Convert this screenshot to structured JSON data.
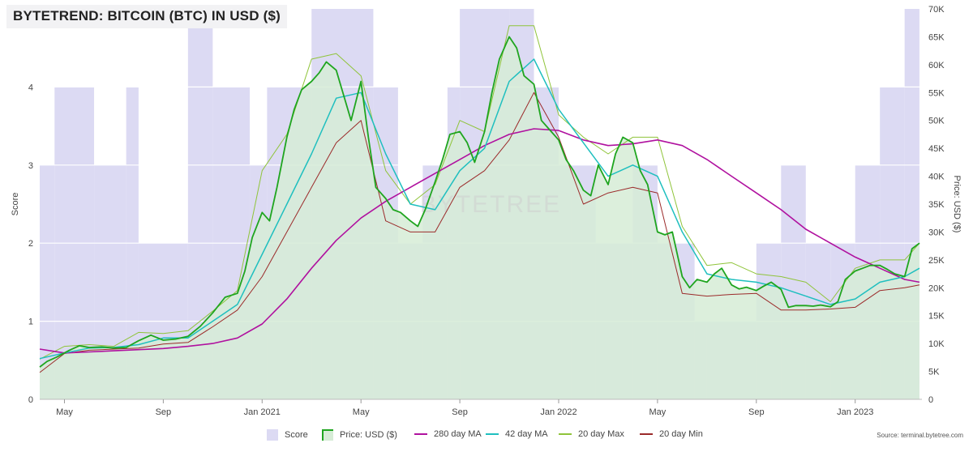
{
  "header": {
    "title": "BYTETREND: BITCOIN (BTC) IN USD ($)"
  },
  "watermark": "BYTETREE",
  "source": "Source: terminal.bytetree.com",
  "colors": {
    "score": "#dcdaf3",
    "price_area": "#d6ecd6",
    "price_line": "#1fa51f",
    "ma280": "#b0119f",
    "ma42": "#1fbfbf",
    "max20": "#8fc43a",
    "min20": "#9b2a2a"
  },
  "chart_data": {
    "type": "line",
    "title": "BYTETREND: BITCOIN (BTC) IN USD ($)",
    "ylabel_left": "Score",
    "ylabel_right": "Price: USD ($)",
    "ylim_left": [
      0,
      5
    ],
    "ylim_right": [
      0,
      70000
    ],
    "left_ticks": [
      "0",
      "1",
      "2",
      "3",
      "4"
    ],
    "right_ticks": [
      "0",
      "5K",
      "10K",
      "15K",
      "20K",
      "25K",
      "30K",
      "35K",
      "40K",
      "45K",
      "50K",
      "55K",
      "60K",
      "65K",
      "70K"
    ],
    "x_ticks": [
      "May",
      "Sep",
      "Jan 2021",
      "May",
      "Sep",
      "Jan 2022",
      "May",
      "Sep",
      "Jan 2023"
    ],
    "x_tick_months": [
      1,
      5,
      9,
      13,
      17,
      21,
      25,
      29,
      33
    ],
    "x_range_months": [
      0,
      35.7
    ],
    "legend_position": "bottom",
    "grid": true,
    "series": [
      {
        "name": "Price: USD ($)",
        "key": "price",
        "points": [
          [
            0,
            5800
          ],
          [
            0.3,
            6800
          ],
          [
            0.7,
            7600
          ],
          [
            1.2,
            8800
          ],
          [
            1.6,
            9600
          ],
          [
            2,
            9300
          ],
          [
            2.5,
            9400
          ],
          [
            3,
            9200
          ],
          [
            3.5,
            9300
          ],
          [
            4,
            10500
          ],
          [
            4.5,
            11500
          ],
          [
            5,
            10600
          ],
          [
            5.5,
            10800
          ],
          [
            6,
            11300
          ],
          [
            6.5,
            13100
          ],
          [
            7,
            15500
          ],
          [
            7.5,
            18300
          ],
          [
            8,
            19000
          ],
          [
            8.3,
            23000
          ],
          [
            8.6,
            29000
          ],
          [
            9,
            33500
          ],
          [
            9.3,
            32000
          ],
          [
            9.6,
            38000
          ],
          [
            10,
            47000
          ],
          [
            10.3,
            52000
          ],
          [
            10.6,
            55500
          ],
          [
            11,
            57000
          ],
          [
            11.3,
            58500
          ],
          [
            11.6,
            60500
          ],
          [
            12,
            59000
          ],
          [
            12.2,
            56000
          ],
          [
            12.6,
            50000
          ],
          [
            13,
            57000
          ],
          [
            13.3,
            47000
          ],
          [
            13.6,
            38000
          ],
          [
            14,
            36000
          ],
          [
            14.3,
            34000
          ],
          [
            14.6,
            33500
          ],
          [
            15,
            32000
          ],
          [
            15.3,
            31000
          ],
          [
            15.6,
            34000
          ],
          [
            16,
            39000
          ],
          [
            16.3,
            43000
          ],
          [
            16.6,
            47500
          ],
          [
            17,
            48000
          ],
          [
            17.3,
            46000
          ],
          [
            17.6,
            42500
          ],
          [
            18,
            48000
          ],
          [
            18.3,
            55000
          ],
          [
            18.6,
            61000
          ],
          [
            19,
            65000
          ],
          [
            19.3,
            63000
          ],
          [
            19.6,
            58000
          ],
          [
            20,
            56500
          ],
          [
            20.3,
            50000
          ],
          [
            20.6,
            48500
          ],
          [
            21,
            46500
          ],
          [
            21.3,
            43000
          ],
          [
            21.6,
            41000
          ],
          [
            22,
            37500
          ],
          [
            22.3,
            36500
          ],
          [
            22.6,
            42000
          ],
          [
            23,
            38500
          ],
          [
            23.3,
            44000
          ],
          [
            23.6,
            47000
          ],
          [
            24,
            46000
          ],
          [
            24.3,
            41000
          ],
          [
            24.6,
            38500
          ],
          [
            25,
            30000
          ],
          [
            25.3,
            29500
          ],
          [
            25.6,
            30000
          ],
          [
            26,
            22000
          ],
          [
            26.3,
            20000
          ],
          [
            26.6,
            21500
          ],
          [
            27,
            21000
          ],
          [
            27.3,
            22500
          ],
          [
            27.6,
            23500
          ],
          [
            28,
            20500
          ],
          [
            28.3,
            19800
          ],
          [
            28.6,
            20100
          ],
          [
            29,
            19500
          ],
          [
            29.3,
            20300
          ],
          [
            29.6,
            21000
          ],
          [
            30,
            19700
          ],
          [
            30.3,
            16500
          ],
          [
            30.6,
            16800
          ],
          [
            31,
            16800
          ],
          [
            31.3,
            16700
          ],
          [
            31.6,
            16900
          ],
          [
            32,
            16600
          ],
          [
            32.3,
            17500
          ],
          [
            32.6,
            21500
          ],
          [
            33,
            23000
          ],
          [
            33.3,
            23500
          ],
          [
            33.6,
            24000
          ],
          [
            34,
            24000
          ],
          [
            34.3,
            23300
          ],
          [
            34.6,
            22500
          ],
          [
            35,
            22000
          ],
          [
            35.3,
            27000
          ],
          [
            35.6,
            28000
          ]
        ]
      },
      {
        "name": "280 day MA",
        "key": "ma280",
        "points": [
          [
            0,
            9000
          ],
          [
            1,
            8300
          ],
          [
            2,
            8500
          ],
          [
            3,
            8700
          ],
          [
            4,
            8900
          ],
          [
            5,
            9100
          ],
          [
            6,
            9500
          ],
          [
            7,
            10000
          ],
          [
            8,
            11000
          ],
          [
            9,
            13500
          ],
          [
            10,
            18000
          ],
          [
            11,
            23500
          ],
          [
            12,
            28500
          ],
          [
            13,
            32500
          ],
          [
            14,
            35500
          ],
          [
            15,
            38000
          ],
          [
            16,
            40500
          ],
          [
            17,
            43000
          ],
          [
            18,
            45500
          ],
          [
            19,
            47500
          ],
          [
            20,
            48500
          ],
          [
            21,
            48200
          ],
          [
            22,
            46500
          ],
          [
            23,
            45500
          ],
          [
            24,
            45800
          ],
          [
            25,
            46500
          ],
          [
            26,
            45500
          ],
          [
            27,
            43000
          ],
          [
            28,
            40000
          ],
          [
            29,
            37000
          ],
          [
            30,
            34000
          ],
          [
            31,
            30500
          ],
          [
            32,
            28000
          ],
          [
            33,
            25500
          ],
          [
            34,
            23500
          ],
          [
            35,
            21500
          ],
          [
            35.6,
            21000
          ]
        ]
      },
      {
        "name": "42 day MA",
        "key": "ma42",
        "points": [
          [
            0,
            7300
          ],
          [
            1,
            8300
          ],
          [
            2,
            9200
          ],
          [
            3,
            9300
          ],
          [
            4,
            9800
          ],
          [
            5,
            11000
          ],
          [
            6,
            11000
          ],
          [
            7,
            14000
          ],
          [
            8,
            17000
          ],
          [
            9,
            26000
          ],
          [
            10,
            35000
          ],
          [
            11,
            44000
          ],
          [
            12,
            54000
          ],
          [
            13,
            55000
          ],
          [
            14,
            44000
          ],
          [
            15,
            35000
          ],
          [
            16,
            34000
          ],
          [
            17,
            41000
          ],
          [
            18,
            45000
          ],
          [
            19,
            57000
          ],
          [
            20,
            61000
          ],
          [
            21,
            52000
          ],
          [
            22,
            46000
          ],
          [
            23,
            40000
          ],
          [
            24,
            42000
          ],
          [
            25,
            40000
          ],
          [
            26,
            30000
          ],
          [
            27,
            22500
          ],
          [
            28,
            21500
          ],
          [
            29,
            21000
          ],
          [
            30,
            20000
          ],
          [
            31,
            18500
          ],
          [
            32,
            17000
          ],
          [
            33,
            18000
          ],
          [
            34,
            21000
          ],
          [
            35,
            22000
          ],
          [
            35.6,
            23500
          ]
        ]
      },
      {
        "name": "20 day Max",
        "key": "max20",
        "points": [
          [
            0,
            7200
          ],
          [
            1,
            9500
          ],
          [
            2,
            9800
          ],
          [
            3,
            9500
          ],
          [
            4,
            12000
          ],
          [
            5,
            11800
          ],
          [
            6,
            12300
          ],
          [
            7,
            15800
          ],
          [
            8,
            19500
          ],
          [
            9,
            41000
          ],
          [
            10,
            47500
          ],
          [
            11,
            61000
          ],
          [
            12,
            62000
          ],
          [
            13,
            58000
          ],
          [
            14,
            41000
          ],
          [
            15,
            35000
          ],
          [
            16,
            38500
          ],
          [
            17,
            50000
          ],
          [
            18,
            48000
          ],
          [
            19,
            67000
          ],
          [
            20,
            67000
          ],
          [
            21,
            51000
          ],
          [
            22,
            47000
          ],
          [
            23,
            44000
          ],
          [
            24,
            47000
          ],
          [
            25,
            47000
          ],
          [
            26,
            31000
          ],
          [
            27,
            24000
          ],
          [
            28,
            24500
          ],
          [
            29,
            22500
          ],
          [
            30,
            22000
          ],
          [
            31,
            21000
          ],
          [
            32,
            17500
          ],
          [
            33,
            23500
          ],
          [
            34,
            25000
          ],
          [
            35,
            25000
          ],
          [
            35.6,
            28000
          ]
        ]
      },
      {
        "name": "20 day Min",
        "key": "min20",
        "points": [
          [
            0,
            4800
          ],
          [
            1,
            8200
          ],
          [
            2,
            8800
          ],
          [
            3,
            9000
          ],
          [
            4,
            9200
          ],
          [
            5,
            9900
          ],
          [
            6,
            10200
          ],
          [
            7,
            13000
          ],
          [
            8,
            16000
          ],
          [
            9,
            22000
          ],
          [
            10,
            30000
          ],
          [
            11,
            38000
          ],
          [
            12,
            46000
          ],
          [
            13,
            50000
          ],
          [
            14,
            32000
          ],
          [
            15,
            30000
          ],
          [
            16,
            30000
          ],
          [
            17,
            38000
          ],
          [
            18,
            41000
          ],
          [
            19,
            46500
          ],
          [
            20,
            55000
          ],
          [
            21,
            47000
          ],
          [
            22,
            35000
          ],
          [
            23,
            37000
          ],
          [
            24,
            38000
          ],
          [
            25,
            37000
          ],
          [
            26,
            19000
          ],
          [
            27,
            18500
          ],
          [
            28,
            18800
          ],
          [
            29,
            19000
          ],
          [
            30,
            16000
          ],
          [
            31,
            16000
          ],
          [
            32,
            16200
          ],
          [
            33,
            16500
          ],
          [
            34,
            19500
          ],
          [
            35,
            20000
          ],
          [
            35.6,
            20500
          ]
        ]
      },
      {
        "name": "Score",
        "key": "score",
        "steps": [
          [
            0,
            3
          ],
          [
            0.6,
            4
          ],
          [
            2.2,
            3
          ],
          [
            3.5,
            4
          ],
          [
            4,
            2
          ],
          [
            6,
            5
          ],
          [
            7,
            4
          ],
          [
            8.5,
            3
          ],
          [
            9.2,
            4
          ],
          [
            11,
            5
          ],
          [
            13.5,
            4
          ],
          [
            14.5,
            2
          ],
          [
            15.5,
            3
          ],
          [
            16.5,
            4
          ],
          [
            17,
            5
          ],
          [
            19,
            5
          ],
          [
            20,
            4
          ],
          [
            21,
            3
          ],
          [
            21.5,
            3
          ],
          [
            22.5,
            2
          ],
          [
            24,
            3
          ],
          [
            25,
            2
          ],
          [
            26.5,
            1
          ],
          [
            27,
            1
          ],
          [
            29,
            2
          ],
          [
            30,
            3
          ],
          [
            31,
            2
          ],
          [
            32,
            2
          ],
          [
            33,
            3
          ],
          [
            34,
            4
          ],
          [
            35,
            5
          ],
          [
            35.6,
            5
          ]
        ]
      }
    ]
  },
  "legend": [
    {
      "label": "Score",
      "key": "score"
    },
    {
      "label": "Price: USD ($)",
      "key": "price"
    },
    {
      "label": "280 day MA",
      "key": "ma280"
    },
    {
      "label": "42 day MA",
      "key": "ma42"
    },
    {
      "label": "20 day Max",
      "key": "max20"
    },
    {
      "label": "20 day Min",
      "key": "min20"
    }
  ]
}
